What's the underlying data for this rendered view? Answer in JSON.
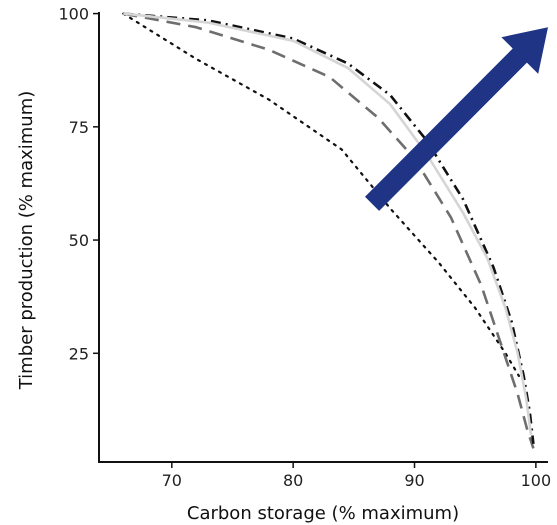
{
  "chart_data": {
    "type": "line",
    "title": "",
    "xlabel": "Carbon storage (% maximum)",
    "ylabel": "Timber production (% maximum)",
    "xlim": [
      64,
      101
    ],
    "ylim": [
      1,
      103
    ],
    "x_ticks": [
      70,
      80,
      90,
      100
    ],
    "y_ticks": [
      25,
      50,
      75,
      100
    ],
    "grid": false,
    "legend": "none",
    "series": [
      {
        "style": "dotted",
        "color": "#111111",
        "points": [
          [
            66,
            100
          ],
          [
            72,
            90
          ],
          [
            78,
            81
          ],
          [
            84,
            70
          ],
          [
            88,
            57
          ],
          [
            92,
            45
          ],
          [
            95,
            35
          ],
          [
            97.5,
            25
          ],
          [
            98.6,
            20
          ]
        ]
      },
      {
        "style": "dashed",
        "color": "#6e6e6e",
        "points": [
          [
            66,
            100
          ],
          [
            72,
            97
          ],
          [
            78,
            92
          ],
          [
            83,
            86
          ],
          [
            87,
            77
          ],
          [
            90,
            68
          ],
          [
            93,
            55
          ],
          [
            95.5,
            40
          ],
          [
            97,
            28
          ],
          [
            98.5,
            16
          ],
          [
            99.3,
            8
          ],
          [
            99.8,
            4
          ]
        ]
      },
      {
        "style": "dash-dot",
        "color": "#111111",
        "points": [
          [
            66,
            100
          ],
          [
            73,
            98.5
          ],
          [
            80,
            94.5
          ],
          [
            84.5,
            89
          ],
          [
            88,
            82
          ],
          [
            91,
            72
          ],
          [
            94,
            59
          ],
          [
            96.5,
            44
          ],
          [
            98,
            32
          ],
          [
            99,
            20
          ],
          [
            99.5,
            12
          ],
          [
            99.8,
            5
          ]
        ]
      },
      {
        "style": "solid",
        "color": "#d5d5d5",
        "points": [
          [
            66,
            100
          ],
          [
            73,
            98
          ],
          [
            80,
            94
          ],
          [
            84.5,
            88
          ],
          [
            88,
            80
          ],
          [
            91,
            69
          ],
          [
            94,
            56
          ],
          [
            96,
            46
          ],
          [
            97.5,
            35
          ],
          [
            98.5,
            25
          ],
          [
            99.2,
            15
          ],
          [
            99.6,
            7
          ]
        ]
      }
    ],
    "annotations": [
      {
        "type": "arrow",
        "color": "#1f3485",
        "from": [
          86.5,
          58
        ],
        "to": [
          101,
          97
        ]
      }
    ]
  }
}
